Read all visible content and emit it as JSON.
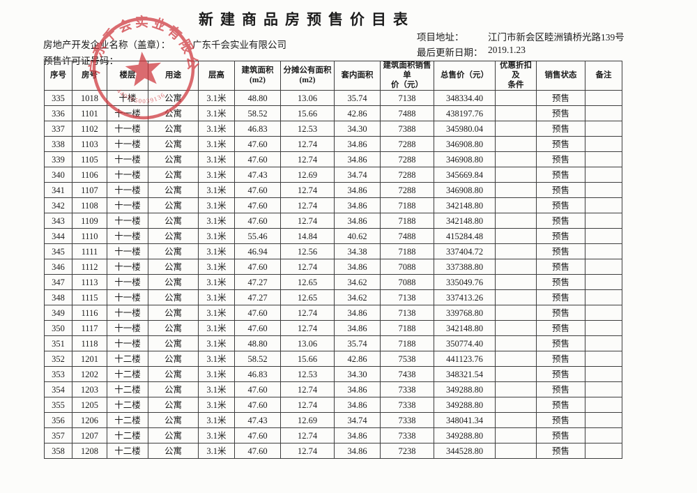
{
  "page": {
    "title": "新建商品房预售价目表",
    "developer_label": "房地产开发企业名称（盖章）：",
    "developer_name": "广东千会实业有限公司",
    "permit_label": "预售许可证号码：",
    "address_label": "项目地址：",
    "address_value": "江门市新会区睦洲镇桥光路139号",
    "updated_label": "最后更新日期：",
    "updated_value": "2019.1.23"
  },
  "seal": {
    "ring_text": "广东千会实业有限公司",
    "number": "4407050039136"
  },
  "table": {
    "columns": [
      "序号",
      "房号",
      "楼层",
      "用途",
      "层高",
      "建筑面积\n(m2)",
      "分摊公有面积\n(m2)",
      "套内面积",
      "建筑面积销售单\n价（元）",
      "总售价（元）",
      "优惠折扣及\n条件",
      "销售状态",
      "备注"
    ],
    "rows": [
      [
        "335",
        "1018",
        "十楼",
        "公寓",
        "3.1米",
        "48.80",
        "13.06",
        "35.74",
        "7138",
        "348334.40",
        "",
        "预售",
        ""
      ],
      [
        "336",
        "1101",
        "十一楼",
        "公寓",
        "3.1米",
        "58.52",
        "15.66",
        "42.86",
        "7488",
        "438197.76",
        "",
        "预售",
        ""
      ],
      [
        "337",
        "1102",
        "十一楼",
        "公寓",
        "3.1米",
        "46.83",
        "12.53",
        "34.30",
        "7388",
        "345980.04",
        "",
        "预售",
        ""
      ],
      [
        "338",
        "1103",
        "十一楼",
        "公寓",
        "3.1米",
        "47.60",
        "12.74",
        "34.86",
        "7288",
        "346908.80",
        "",
        "预售",
        ""
      ],
      [
        "339",
        "1105",
        "十一楼",
        "公寓",
        "3.1米",
        "47.60",
        "12.74",
        "34.86",
        "7288",
        "346908.80",
        "",
        "预售",
        ""
      ],
      [
        "340",
        "1106",
        "十一楼",
        "公寓",
        "3.1米",
        "47.43",
        "12.69",
        "34.74",
        "7288",
        "345669.84",
        "",
        "预售",
        ""
      ],
      [
        "341",
        "1107",
        "十一楼",
        "公寓",
        "3.1米",
        "47.60",
        "12.74",
        "34.86",
        "7288",
        "346908.80",
        "",
        "预售",
        ""
      ],
      [
        "342",
        "1108",
        "十一楼",
        "公寓",
        "3.1米",
        "47.60",
        "12.74",
        "34.86",
        "7188",
        "342148.80",
        "",
        "预售",
        ""
      ],
      [
        "343",
        "1109",
        "十一楼",
        "公寓",
        "3.1米",
        "47.60",
        "12.74",
        "34.86",
        "7188",
        "342148.80",
        "",
        "预售",
        ""
      ],
      [
        "344",
        "1110",
        "十一楼",
        "公寓",
        "3.1米",
        "55.46",
        "14.84",
        "40.62",
        "7488",
        "415284.48",
        "",
        "预售",
        ""
      ],
      [
        "345",
        "1111",
        "十一楼",
        "公寓",
        "3.1米",
        "46.94",
        "12.56",
        "34.38",
        "7188",
        "337404.72",
        "",
        "预售",
        ""
      ],
      [
        "346",
        "1112",
        "十一楼",
        "公寓",
        "3.1米",
        "47.60",
        "12.74",
        "34.86",
        "7088",
        "337388.80",
        "",
        "预售",
        ""
      ],
      [
        "347",
        "1113",
        "十一楼",
        "公寓",
        "3.1米",
        "47.27",
        "12.65",
        "34.62",
        "7088",
        "335049.76",
        "",
        "预售",
        ""
      ],
      [
        "348",
        "1115",
        "十一楼",
        "公寓",
        "3.1米",
        "47.27",
        "12.65",
        "34.62",
        "7138",
        "337413.26",
        "",
        "预售",
        ""
      ],
      [
        "349",
        "1116",
        "十一楼",
        "公寓",
        "3.1米",
        "47.60",
        "12.74",
        "34.86",
        "7138",
        "339768.80",
        "",
        "预售",
        ""
      ],
      [
        "350",
        "1117",
        "十一楼",
        "公寓",
        "3.1米",
        "47.60",
        "12.74",
        "34.86",
        "7188",
        "342148.80",
        "",
        "预售",
        ""
      ],
      [
        "351",
        "1118",
        "十一楼",
        "公寓",
        "3.1米",
        "48.80",
        "13.06",
        "35.74",
        "7188",
        "350774.40",
        "",
        "预售",
        ""
      ],
      [
        "352",
        "1201",
        "十二楼",
        "公寓",
        "3.1米",
        "58.52",
        "15.66",
        "42.86",
        "7538",
        "441123.76",
        "",
        "预售",
        ""
      ],
      [
        "353",
        "1202",
        "十二楼",
        "公寓",
        "3.1米",
        "46.83",
        "12.53",
        "34.30",
        "7438",
        "348321.54",
        "",
        "预售",
        ""
      ],
      [
        "354",
        "1203",
        "十二楼",
        "公寓",
        "3.1米",
        "47.60",
        "12.74",
        "34.86",
        "7338",
        "349288.80",
        "",
        "预售",
        ""
      ],
      [
        "355",
        "1205",
        "十二楼",
        "公寓",
        "3.1米",
        "47.60",
        "12.74",
        "34.86",
        "7338",
        "349288.80",
        "",
        "预售",
        ""
      ],
      [
        "356",
        "1206",
        "十二楼",
        "公寓",
        "3.1米",
        "47.43",
        "12.69",
        "34.74",
        "7338",
        "348041.34",
        "",
        "预售",
        ""
      ],
      [
        "357",
        "1207",
        "十二楼",
        "公寓",
        "3.1米",
        "47.60",
        "12.74",
        "34.86",
        "7338",
        "349288.80",
        "",
        "预售",
        ""
      ],
      [
        "358",
        "1208",
        "十二楼",
        "公寓",
        "3.1米",
        "47.60",
        "12.74",
        "34.86",
        "7238",
        "344528.80",
        "",
        "预售",
        ""
      ]
    ]
  }
}
